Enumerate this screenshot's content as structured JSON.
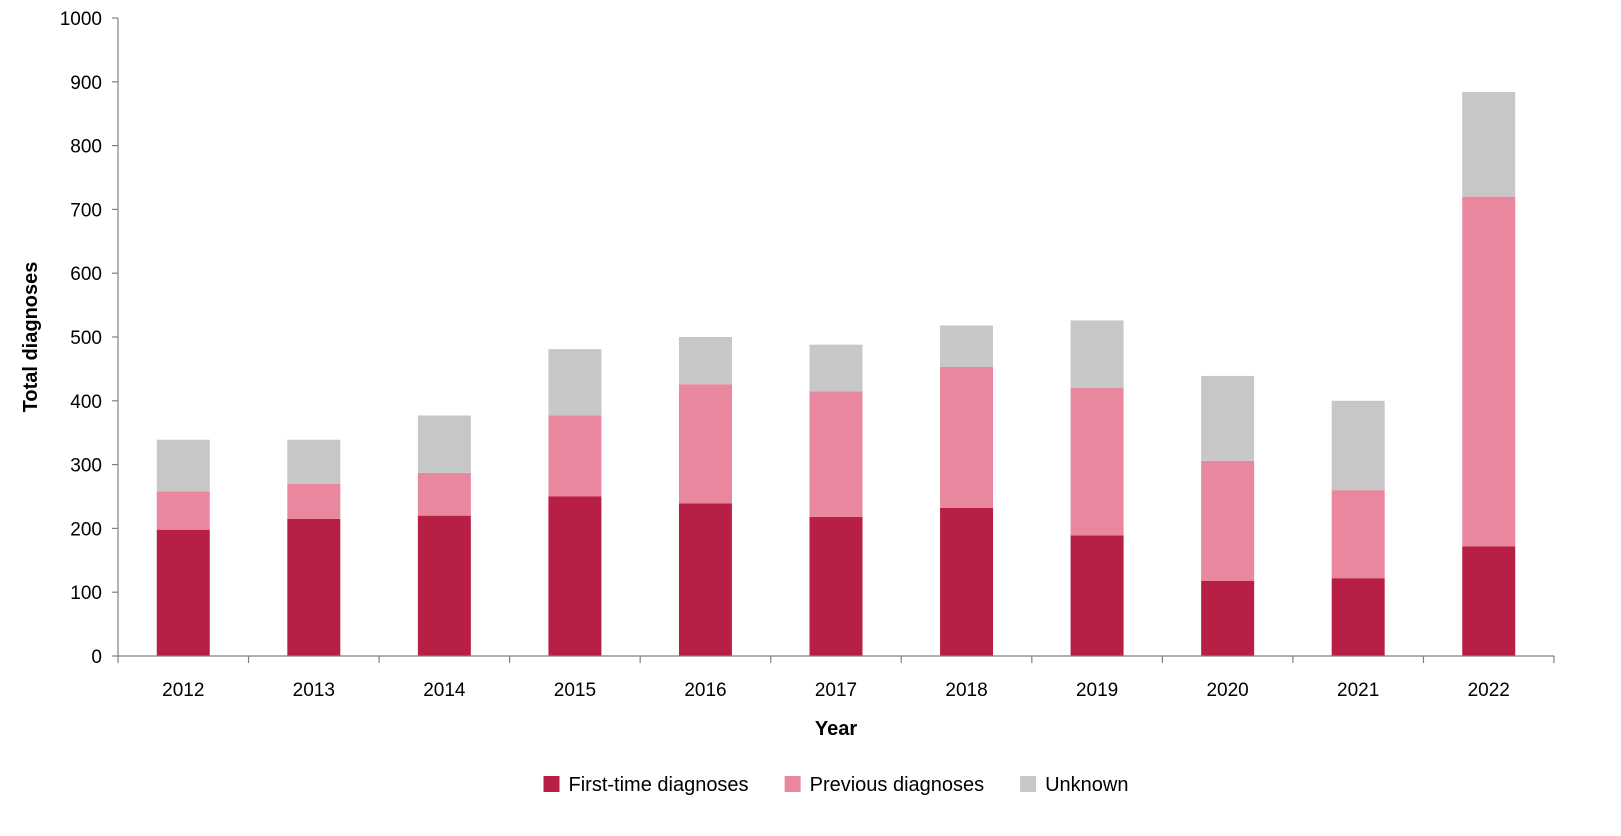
{
  "chart_data": {
    "type": "bar",
    "stacked": true,
    "title": "",
    "xlabel": "Year",
    "ylabel": "Total diagnoses",
    "ylim": [
      0,
      1000
    ],
    "yticks": [
      "0",
      "100",
      "200",
      "300",
      "400",
      "500",
      "600",
      "700",
      "800",
      "900",
      "1000"
    ],
    "categories": [
      "2012",
      "2013",
      "2014",
      "2015",
      "2016",
      "2017",
      "2018",
      "2019",
      "2020",
      "2021",
      "2022"
    ],
    "series": [
      {
        "name": "First-time diagnoses",
        "color": "#b81f45",
        "values": [
          198,
          215,
          220,
          250,
          239,
          218,
          232,
          189,
          118,
          122,
          172
        ]
      },
      {
        "name": "Previous diagnoses",
        "color": "#e8879d",
        "values": [
          60,
          55,
          67,
          127,
          187,
          197,
          221,
          231,
          188,
          138,
          548
        ]
      },
      {
        "name": "Unknown",
        "color": "#c7c7c7",
        "values": [
          81,
          69,
          90,
          104,
          74,
          73,
          65,
          106,
          133,
          140,
          164
        ]
      }
    ],
    "grid": false,
    "legend_position": "bottom-center"
  }
}
